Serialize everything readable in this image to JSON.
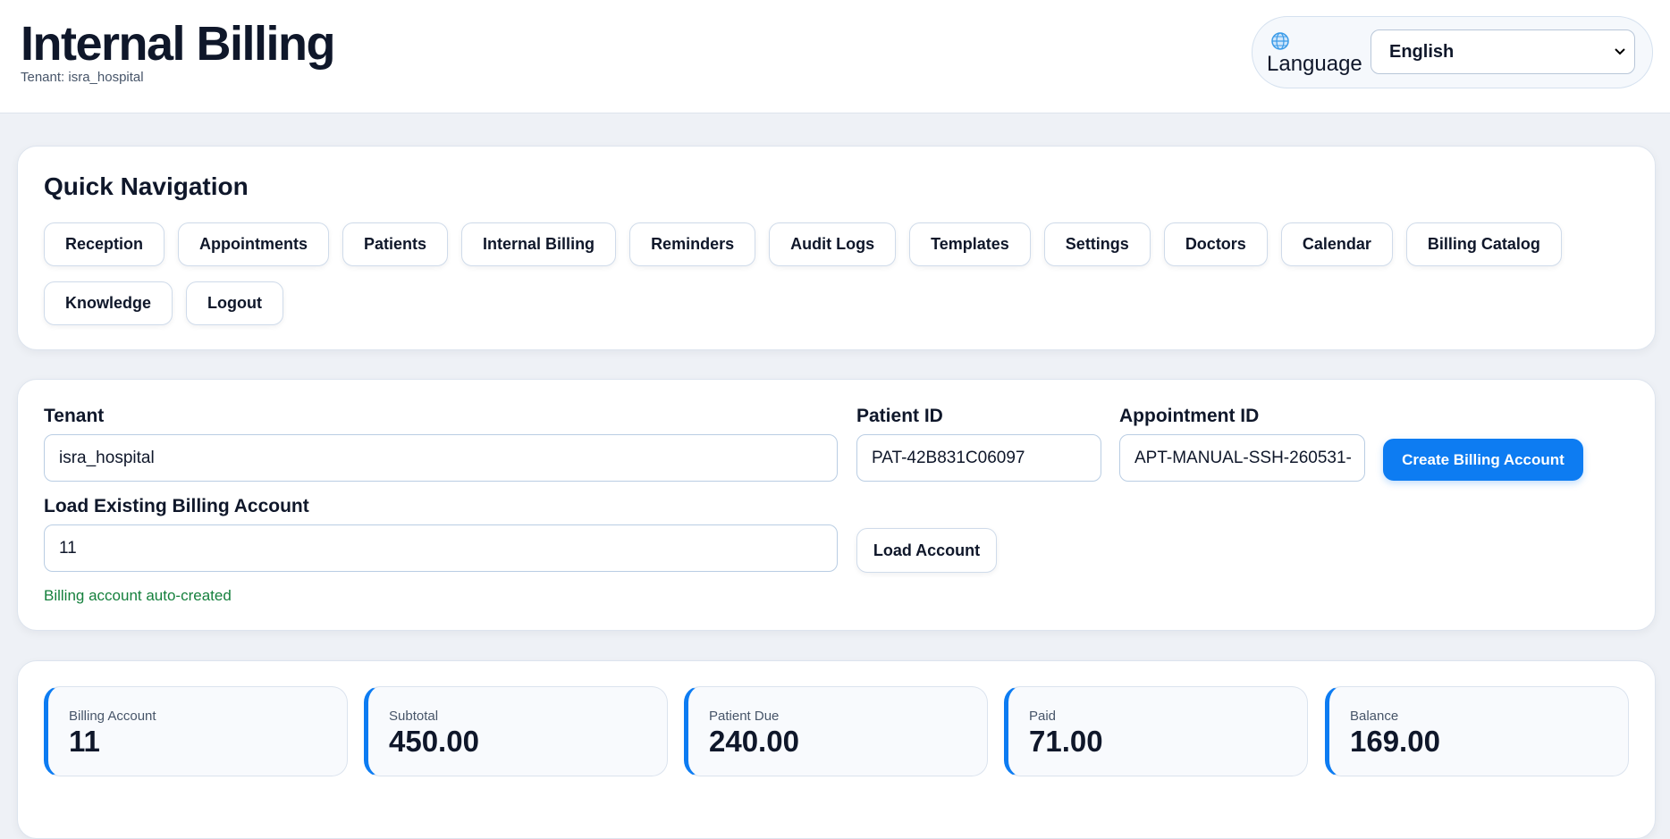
{
  "header": {
    "title": "Internal Billing",
    "tenant": "Tenant: isra_hospital"
  },
  "language": {
    "label": "Language",
    "selected": "English"
  },
  "navigation": {
    "title": "Quick Navigation",
    "buttons": [
      "Reception",
      "Appointments",
      "Patients",
      "Internal Billing",
      "Reminders",
      "Audit Logs",
      "Templates",
      "Settings",
      "Doctors",
      "Calendar",
      "Billing Catalog",
      "Knowledge",
      "Logout"
    ]
  },
  "form": {
    "tenant": {
      "label": "Tenant",
      "value": "isra_hospital"
    },
    "patient_id": {
      "label": "Patient ID",
      "value": "PAT-42B831C06097"
    },
    "appointment_id": {
      "label": "Appointment ID",
      "value": "APT-MANUAL-SSH-260531-"
    },
    "create_button": "Create Billing Account",
    "load": {
      "label": "Load Existing Billing Account",
      "value": "11",
      "button": "Load Account"
    },
    "status": "Billing account auto-created"
  },
  "stats": [
    {
      "label": "Billing Account",
      "value": "11"
    },
    {
      "label": "Subtotal",
      "value": "450.00"
    },
    {
      "label": "Patient Due",
      "value": "240.00"
    },
    {
      "label": "Paid",
      "value": "71.00"
    },
    {
      "label": "Balance",
      "value": "169.00"
    }
  ]
}
